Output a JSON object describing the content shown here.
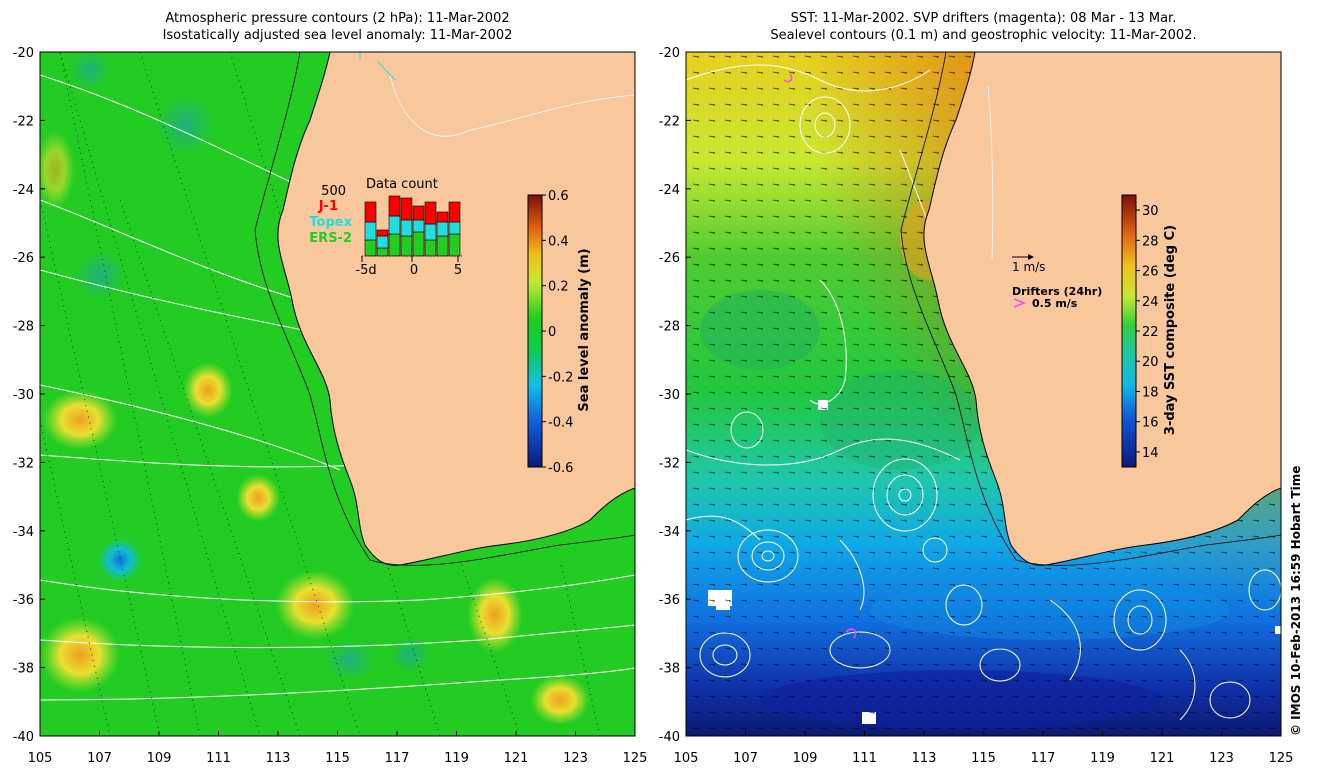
{
  "left_panel": {
    "title_line1": "Atmospheric pressure contours (2 hPa): 11-Mar-2002",
    "title_line2": "Isostatically adjusted sea level anomaly: 11-Mar-2002",
    "colorbar": {
      "label": "Sea level anomaly (m)",
      "ticks": [
        "0.6",
        "0.4",
        "0.2",
        "0",
        "-0.2",
        "-0.4",
        "-0.6"
      ],
      "range": [
        -0.6,
        0.6
      ]
    },
    "inset": {
      "title": "Data count",
      "scale_label": "500",
      "legend": [
        {
          "label": "J-1",
          "color": "#ff0000"
        },
        {
          "label": "Topex",
          "color": "#22dddd"
        },
        {
          "label": "ERS-2",
          "color": "#22cc22"
        }
      ],
      "x_ticks": [
        "-5",
        "0",
        "5"
      ],
      "day_labels": [
        "-5d"
      ]
    }
  },
  "right_panel": {
    "title_line1": "SST: 11-Mar-2002. SVP drifters (magenta): 08 Mar - 13 Mar.",
    "title_line2": "Sealevel contours (0.1 m) and geostrophic velocity: 11-Mar-2002.",
    "colorbar": {
      "label": "3-day SST composite (deg C)",
      "ticks": [
        "30",
        "28",
        "26",
        "24",
        "22",
        "20",
        "18",
        "16",
        "14"
      ],
      "range": [
        13,
        31
      ]
    },
    "velocity_scale": "1 m/s",
    "drifter_title": "Drifters (24hr)",
    "drifter_scale": "0.5 m/s"
  },
  "axes": {
    "lat_ticks": [
      "-20",
      "-22",
      "-24",
      "-26",
      "-28",
      "-30",
      "-32",
      "-34",
      "-36",
      "-38",
      "-40"
    ],
    "lon_ticks": [
      "105",
      "107",
      "109",
      "111",
      "113",
      "115",
      "117",
      "119",
      "121",
      "123",
      "125"
    ]
  },
  "credit": "© IMOS 10-Feb-2013 16:59 Hobart Time",
  "colors": {
    "land": "#f9c79c",
    "coast": "#000000",
    "contour": "#ffffff",
    "drifter": "#ff44ff"
  }
}
